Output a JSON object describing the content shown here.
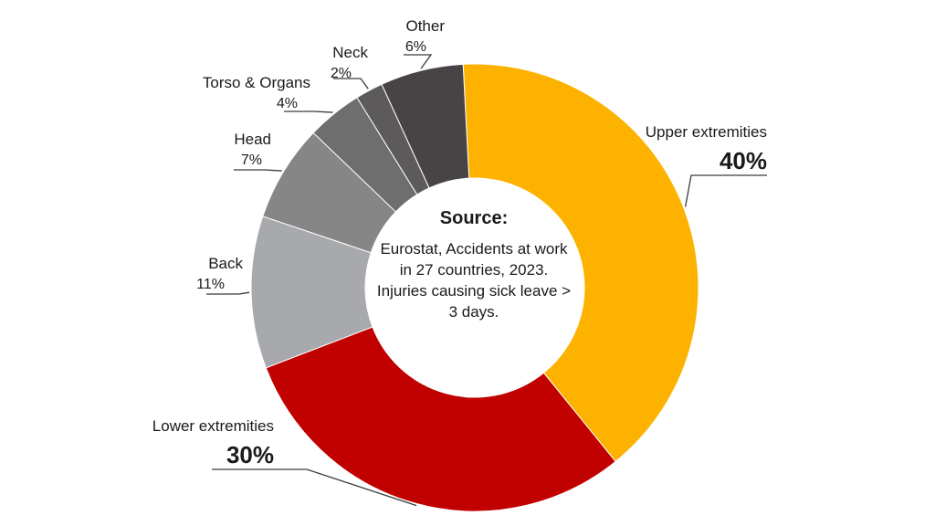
{
  "chart_data": {
    "type": "pie",
    "title": "",
    "categories": [
      "Upper extremities",
      "Lower extremities",
      "Back",
      "Head",
      "Torso & Organs",
      "Neck",
      "Other"
    ],
    "values": [
      40,
      30,
      11,
      7,
      4,
      2,
      6
    ],
    "value_labels": [
      "40%",
      "30%",
      "11%",
      "7%",
      "4%",
      "2%",
      "6%"
    ],
    "colors": [
      "#FDB200",
      "#C10000",
      "#A7A9AC",
      "#868686",
      "#6E6E6E",
      "#5D5A5C",
      "#484445"
    ],
    "legend": "none"
  },
  "center": {
    "title": "Source:",
    "text": "Eurostat, Accidents at work in 27 countries, 2023. Injuries causing sick leave > 3 days."
  }
}
